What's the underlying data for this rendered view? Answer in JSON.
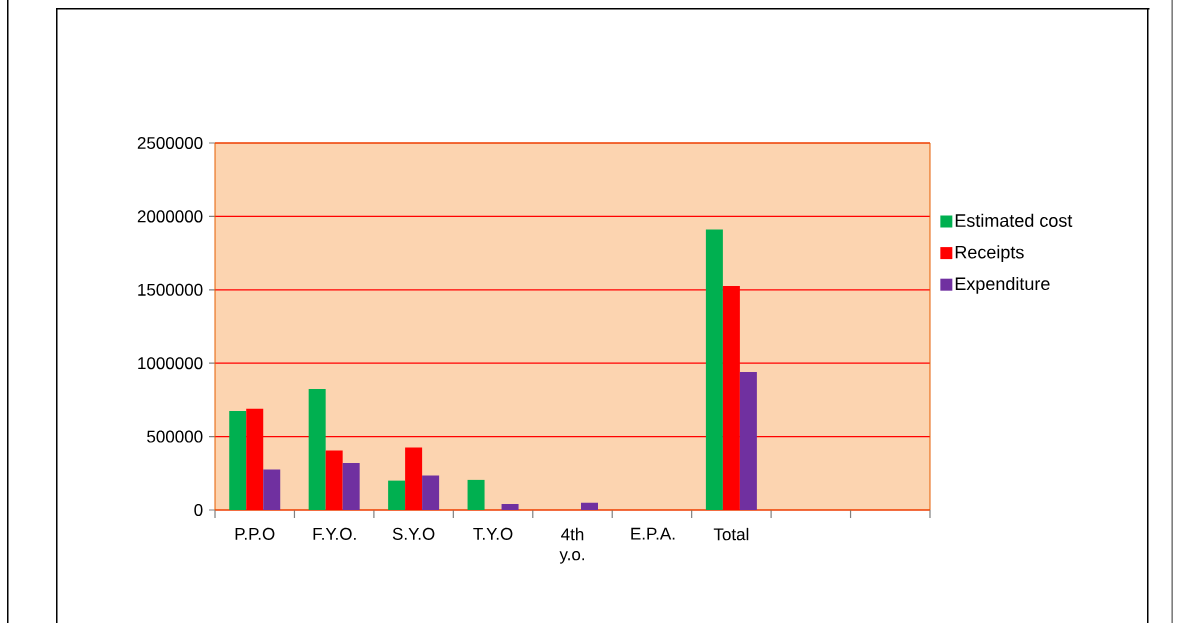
{
  "chart_data": {
    "type": "bar",
    "categories": [
      "P.P.O",
      "F.Y.O.",
      "S.Y.O",
      "T.Y.O",
      "4th y.o.",
      "E.P.A.",
      "Total",
      null,
      null
    ],
    "series": [
      {
        "name": "Estimated cost",
        "color": "#00b050",
        "values": [
          675000,
          825000,
          200000,
          205000,
          null,
          null,
          1910000,
          null,
          null
        ]
      },
      {
        "name": "Receipts",
        "color": "#ff0000",
        "values": [
          690000,
          405000,
          425000,
          null,
          null,
          null,
          1525000,
          null,
          null
        ]
      },
      {
        "name": "Expenditure",
        "color": "#7030a0",
        "values": [
          275000,
          320000,
          235000,
          40000,
          50000,
          null,
          940000,
          null,
          null
        ]
      }
    ],
    "ylim": [
      0,
      2500000
    ],
    "yticks": [
      0,
      500000,
      1000000,
      1500000,
      2000000,
      2500000
    ],
    "grid": "y",
    "legend": "right"
  }
}
